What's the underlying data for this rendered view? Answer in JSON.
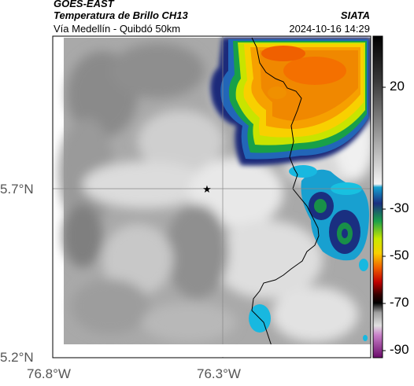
{
  "header": {
    "satellite": "GOES-EAST",
    "product": "Temperatura de Brillo CH13",
    "route": "Vía Medellín - Quibdó 50km",
    "agency": "SIATA",
    "timestamp": "2024-10-16 14:29"
  },
  "map": {
    "lat_labels": [
      "5.7°N",
      "5.2°N"
    ],
    "lon_labels": [
      "76.8°W",
      "76.3°W"
    ],
    "marker": "star-marker"
  },
  "colorbar": {
    "tick_labels": [
      "20",
      "-30",
      "-50",
      "-70",
      "-90"
    ]
  }
}
